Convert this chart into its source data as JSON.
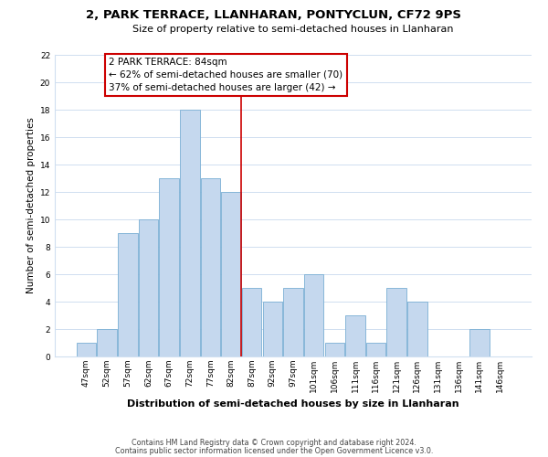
{
  "title": "2, PARK TERRACE, LLANHARAN, PONTYCLUN, CF72 9PS",
  "subtitle": "Size of property relative to semi-detached houses in Llanharan",
  "xlabel": "Distribution of semi-detached houses by size in Llanharan",
  "ylabel": "Number of semi-detached properties",
  "bar_labels": [
    "47sqm",
    "52sqm",
    "57sqm",
    "62sqm",
    "67sqm",
    "72sqm",
    "77sqm",
    "82sqm",
    "87sqm",
    "92sqm",
    "97sqm",
    "101sqm",
    "106sqm",
    "111sqm",
    "116sqm",
    "121sqm",
    "126sqm",
    "131sqm",
    "136sqm",
    "141sqm",
    "146sqm"
  ],
  "bar_values": [
    1,
    2,
    9,
    10,
    13,
    18,
    13,
    12,
    5,
    4,
    5,
    6,
    1,
    3,
    1,
    5,
    4,
    0,
    0,
    2,
    0
  ],
  "bar_color": "#c5d8ee",
  "bar_edge_color": "#7aafd4",
  "reference_line_x": 7.5,
  "annotation_title": "2 PARK TERRACE: 84sqm",
  "annotation_line1": "← 62% of semi-detached houses are smaller (70)",
  "annotation_line2": "37% of semi-detached houses are larger (42) →",
  "annotation_box_color": "#ffffff",
  "annotation_box_edge": "#cc0000",
  "vline_color": "#cc0000",
  "ylim": [
    0,
    22
  ],
  "yticks": [
    0,
    2,
    4,
    6,
    8,
    10,
    12,
    14,
    16,
    18,
    20,
    22
  ],
  "footnote1": "Contains HM Land Registry data © Crown copyright and database right 2024.",
  "footnote2": "Contains public sector information licensed under the Open Government Licence v3.0.",
  "bg_color": "#ffffff",
  "grid_color": "#d0dff0",
  "title_fontsize": 9.5,
  "subtitle_fontsize": 8,
  "xlabel_fontsize": 8,
  "ylabel_fontsize": 7.5,
  "tick_fontsize": 6.5,
  "annotation_fontsize": 7.5,
  "footnote_fontsize": 5.8
}
